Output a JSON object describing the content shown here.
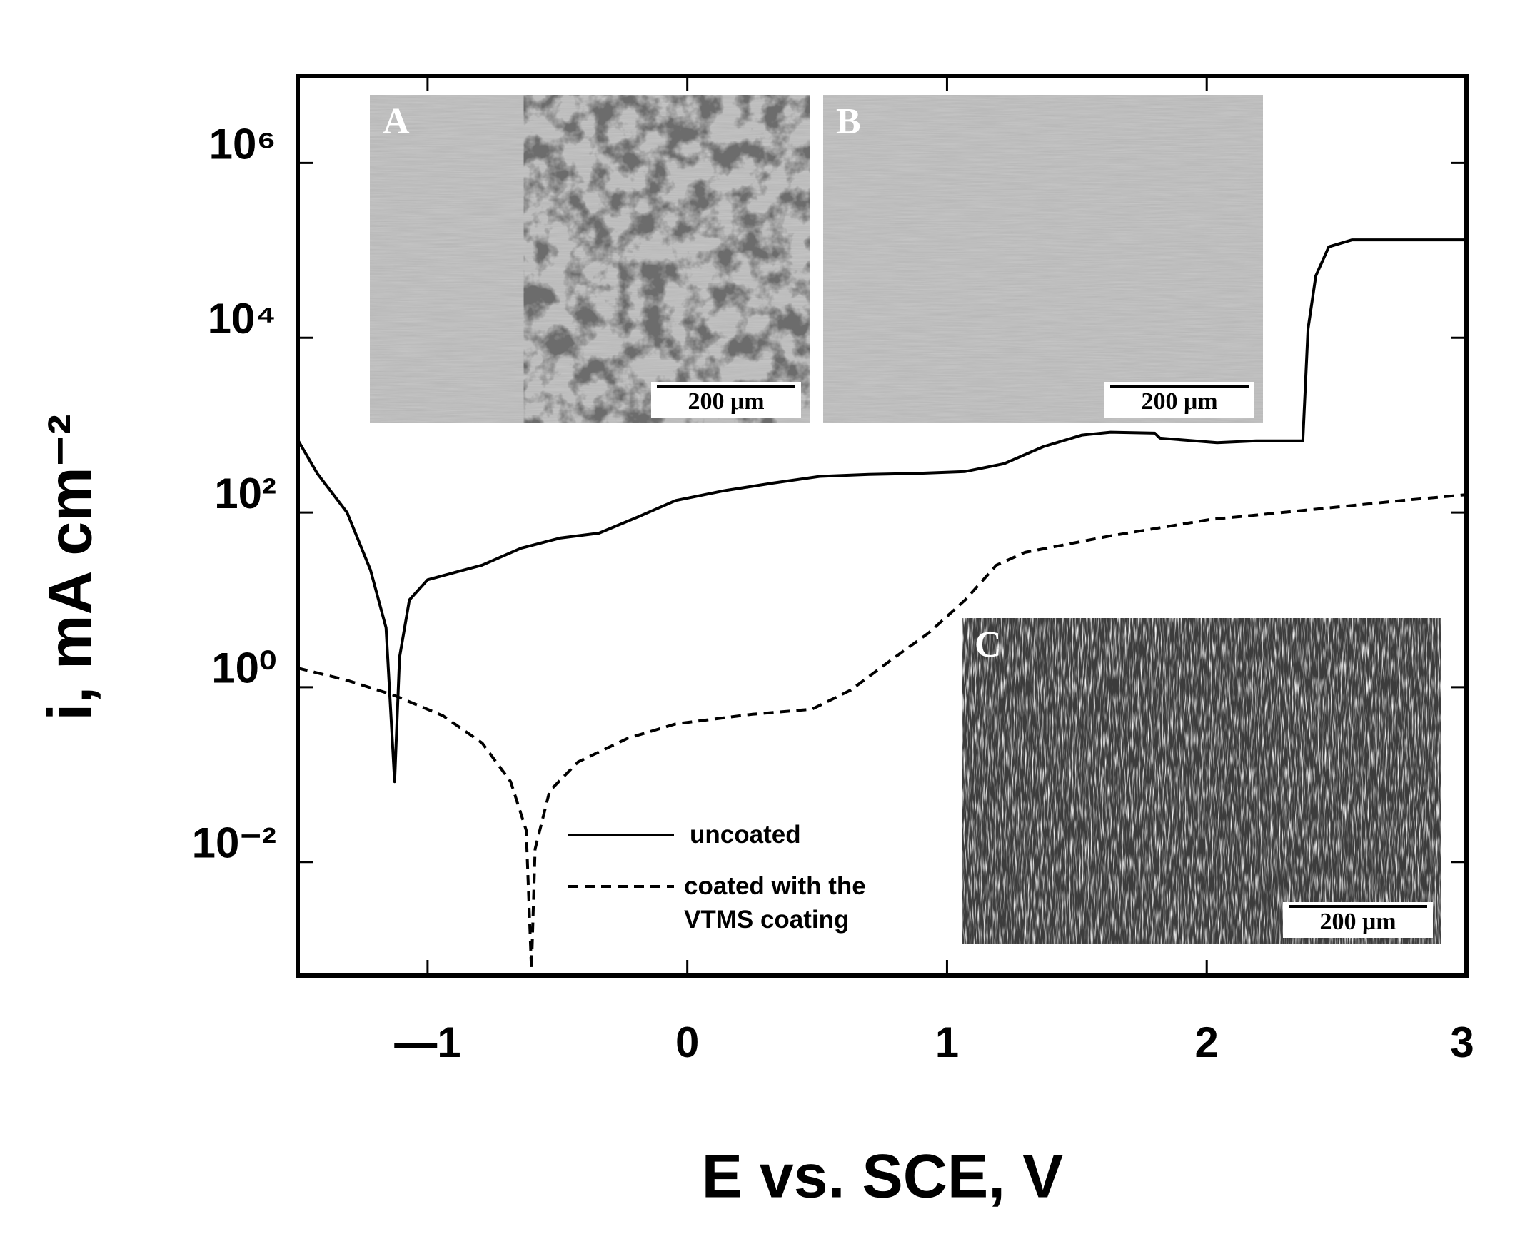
{
  "chart_data": {
    "type": "line",
    "x_label": "E vs. SCE, V",
    "y_label": "i, mA cm⁻²",
    "log_y": true,
    "xlim": [
      -1.5,
      3
    ],
    "ylim": [
      0.0005,
      10000000
    ],
    "xticks": [
      {
        "value": -1,
        "label": "—1"
      },
      0,
      1,
      2,
      3
    ],
    "yticks": [
      {
        "value": 0.01,
        "label": "10⁻²"
      },
      {
        "value": 1,
        "label": "10⁰"
      },
      {
        "value": 100,
        "label": "10²"
      },
      {
        "value": 10000,
        "label": "10⁴"
      },
      {
        "value": 1000000,
        "label": "10⁶"
      }
    ],
    "series": [
      {
        "name": "uncoated",
        "color": "#000000",
        "dash": "solid",
        "x": [
          -1.5,
          -1.425,
          -1.31,
          -1.22,
          -1.16,
          -1.127,
          -1.108,
          -1.07,
          -1.0,
          -0.79,
          -0.64,
          -0.49,
          -0.34,
          -0.19,
          -0.045,
          0.14,
          0.33,
          0.51,
          0.7,
          0.89,
          1.07,
          1.22,
          1.37,
          1.52,
          1.63,
          1.8,
          1.82,
          2.04,
          2.19,
          2.37,
          2.39,
          2.42,
          2.47,
          2.56,
          3.0
        ],
        "values": [
          680,
          280,
          100,
          22,
          4.8,
          0.083,
          2.2,
          10,
          17,
          25,
          39,
          51,
          58,
          89,
          137,
          177,
          217,
          259,
          273,
          280,
          294,
          362,
          565,
          770,
          830,
          810,
          710,
          630,
          660,
          660,
          12600,
          51000,
          110000,
          132000,
          132000
        ]
      },
      {
        "name": "coated with the VTMS coating",
        "color": "#000000",
        "dash": "dashed",
        "x": [
          -1.5,
          -1.31,
          -1.13,
          -0.94,
          -0.79,
          -0.68,
          -0.62,
          -0.6,
          -0.586,
          -0.53,
          -0.42,
          -0.23,
          -0.045,
          0.25,
          0.48,
          0.63,
          0.78,
          0.93,
          1.07,
          1.19,
          1.3,
          1.63,
          2.01,
          2.39,
          2.76,
          3.0
        ],
        "values": [
          1.66,
          1.2,
          0.81,
          0.47,
          0.23,
          0.083,
          0.023,
          0.00059,
          0.014,
          0.065,
          0.14,
          0.26,
          0.38,
          0.49,
          0.56,
          0.93,
          2.0,
          4.2,
          10,
          25,
          35,
          54,
          83,
          107,
          138,
          160
        ]
      }
    ],
    "insets": [
      {
        "label": "A",
        "scale_bar": "200 μm"
      },
      {
        "label": "B",
        "scale_bar": "200 μm"
      },
      {
        "label": "C",
        "scale_bar": "200 μm"
      }
    ]
  }
}
